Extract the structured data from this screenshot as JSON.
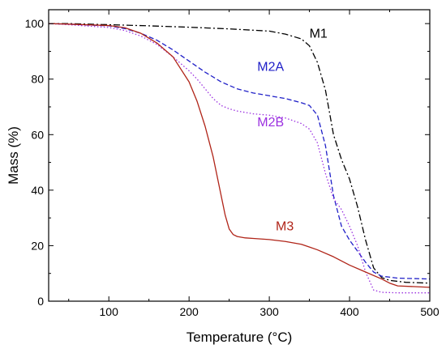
{
  "chart_data": {
    "type": "line",
    "xlabel": "Temperature (°C)",
    "ylabel": "Mass (%)",
    "xlim": [
      25,
      500
    ],
    "ylim": [
      0,
      105
    ],
    "x_ticks": [
      100,
      200,
      300,
      400,
      500
    ],
    "y_ticks": [
      0,
      20,
      40,
      60,
      80,
      100
    ],
    "grid": false,
    "legend": "none",
    "series": [
      {
        "name": "M1",
        "color": "#000000",
        "dash": "8,3,2,3",
        "label_at": [
          350,
          95
        ],
        "x": [
          25,
          50,
          100,
          150,
          200,
          250,
          300,
          320,
          340,
          350,
          360,
          370,
          380,
          390,
          400,
          410,
          420,
          430,
          440,
          450,
          470,
          500
        ],
        "y": [
          100,
          100,
          99.6,
          99.2,
          98.7,
          98.1,
          97.3,
          96.2,
          94.5,
          92.0,
          86.0,
          76.0,
          60.0,
          51.0,
          44.0,
          34.0,
          22.0,
          12.0,
          8.5,
          7.5,
          6.8,
          6.5
        ]
      },
      {
        "name": "M2A",
        "color": "#2020c8",
        "dash": "6,3",
        "label_at": [
          285,
          83
        ],
        "x": [
          25,
          50,
          100,
          120,
          140,
          160,
          180,
          200,
          220,
          240,
          260,
          280,
          300,
          320,
          340,
          350,
          360,
          370,
          380,
          390,
          400,
          410,
          420,
          430,
          440,
          460,
          500
        ],
        "y": [
          100,
          99.8,
          99.2,
          98.2,
          96.5,
          94.0,
          90.5,
          86.5,
          82.5,
          79.0,
          76.5,
          75.0,
          74.0,
          73.0,
          71.5,
          70.5,
          67.0,
          56.0,
          38.0,
          27.0,
          22.0,
          18.0,
          14.0,
          10.5,
          9.0,
          8.3,
          8.0
        ]
      },
      {
        "name": "M2B",
        "color": "#9b30e0",
        "dash": "1.5,2.5",
        "label_at": [
          285,
          63
        ],
        "x": [
          25,
          50,
          100,
          120,
          140,
          160,
          180,
          200,
          210,
          220,
          230,
          240,
          250,
          260,
          270,
          280,
          300,
          320,
          340,
          350,
          360,
          370,
          380,
          390,
          400,
          410,
          420,
          430,
          440,
          460,
          500
        ],
        "y": [
          100,
          99.6,
          98.6,
          97.5,
          95.5,
          92.5,
          88.0,
          83.0,
          80.0,
          76.5,
          73.0,
          70.5,
          69.3,
          68.5,
          68.0,
          67.5,
          67.0,
          66.0,
          64.0,
          62.0,
          57.0,
          46.0,
          37.0,
          33.0,
          27.0,
          20.0,
          10.5,
          4.0,
          3.2,
          3.0,
          3.0
        ]
      },
      {
        "name": "M3",
        "color": "#b02418",
        "dash": "",
        "label_at": [
          308,
          25.5
        ],
        "x": [
          25,
          50,
          100,
          120,
          140,
          160,
          180,
          200,
          210,
          220,
          230,
          240,
          245,
          250,
          255,
          260,
          270,
          280,
          300,
          320,
          340,
          350,
          360,
          380,
          400,
          420,
          440,
          450,
          460,
          500
        ],
        "y": [
          100,
          99.8,
          99.3,
          98.5,
          96.5,
          93.0,
          88.0,
          79.0,
          72.0,
          63.0,
          52.0,
          38.0,
          31.0,
          26.0,
          24.0,
          23.3,
          22.8,
          22.6,
          22.2,
          21.5,
          20.5,
          19.5,
          18.5,
          16.0,
          13.0,
          10.5,
          8.0,
          6.5,
          5.5,
          5.0
        ]
      }
    ]
  }
}
